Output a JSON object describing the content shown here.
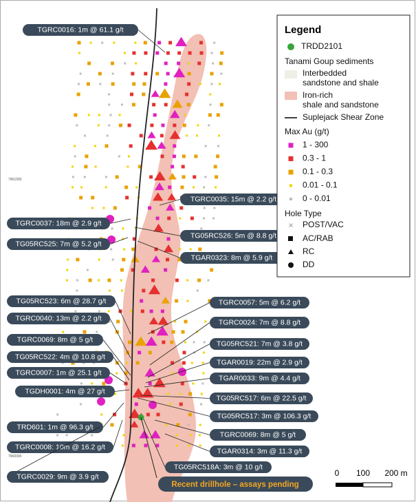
{
  "map": {
    "grid_labels": [
      "7961000",
      "7960000"
    ],
    "callouts": [
      "TGRC0016: 1m @ 61.1 g/t",
      "TGRC0035: 15m @ 2.2 g/t",
      "TGRC0037: 18m @ 2.9 g/t",
      "TG05RC526: 5m @ 8.8 g/t",
      "TG05RC525: 7m @ 5.2 g/t",
      "TGAR0323: 8m @ 5.9 g/t",
      "TG05RC523: 6m @ 28.7 g/t",
      "TGRC0057: 5m @ 6.2 g/t",
      "TGRC0040: 13m @ 2.2 g/t",
      "TGRC0024: 7m @ 8.8 g/t",
      "TGRC0069: 8m @ 5 g/t",
      "TG05RC521: 7m @ 3.8 g/t",
      "TG05RC522: 4m @ 10.8 g/t",
      "TGAR0019: 22m @ 2.9 g/t",
      "TGRC0007: 1m @ 25.1 g/t",
      "TGAR0033: 9m @ 4.4 g/t",
      "TGDH0001: 4m @ 27 g/t",
      "TG05RC517: 6m @ 22.5 g/t",
      "TG05RC517: 3m @ 106.3 g/t",
      "TRD601: 1m @ 96.3 g/t",
      "TGRC0069: 8m @ 5 g/t",
      "TGRC0008: 10m @ 16.2 g/t",
      "TGAR0314: 3m @ 11.3 g/t",
      "TG05RC518A: 3m @ 10 g/t",
      "TGRC0029: 9m @ 3.9 g/t"
    ],
    "pending": "Recent drillhole – assays pending",
    "scale": [
      "0",
      "100",
      "200 m"
    ]
  },
  "legend": {
    "title": "Legend",
    "trdd": "TRDD2101",
    "sediments": "Tanami Goup sediments",
    "interbedded": [
      "Interbedded",
      "sandstone and shale"
    ],
    "iron_rich": [
      "Iron-rich",
      "shale and sandstone"
    ],
    "shear": "Suplejack Shear Zone",
    "au_title": "Max Au (g/t)",
    "au_classes": [
      {
        "label": "1 - 300",
        "color": "#e020c0"
      },
      {
        "label": "0.3 - 1",
        "color": "#e53030"
      },
      {
        "label": "0.1 - 0.3",
        "color": "#e8a200"
      },
      {
        "label": "0.01 - 0.1",
        "color": "#f2d300"
      },
      {
        "label": "0 - 0.01",
        "color": "#bdbdbd"
      }
    ],
    "hole_title": "Hole Type",
    "hole_types": [
      "POST/VAC",
      "AC/RAB",
      "RC",
      "DD"
    ]
  }
}
